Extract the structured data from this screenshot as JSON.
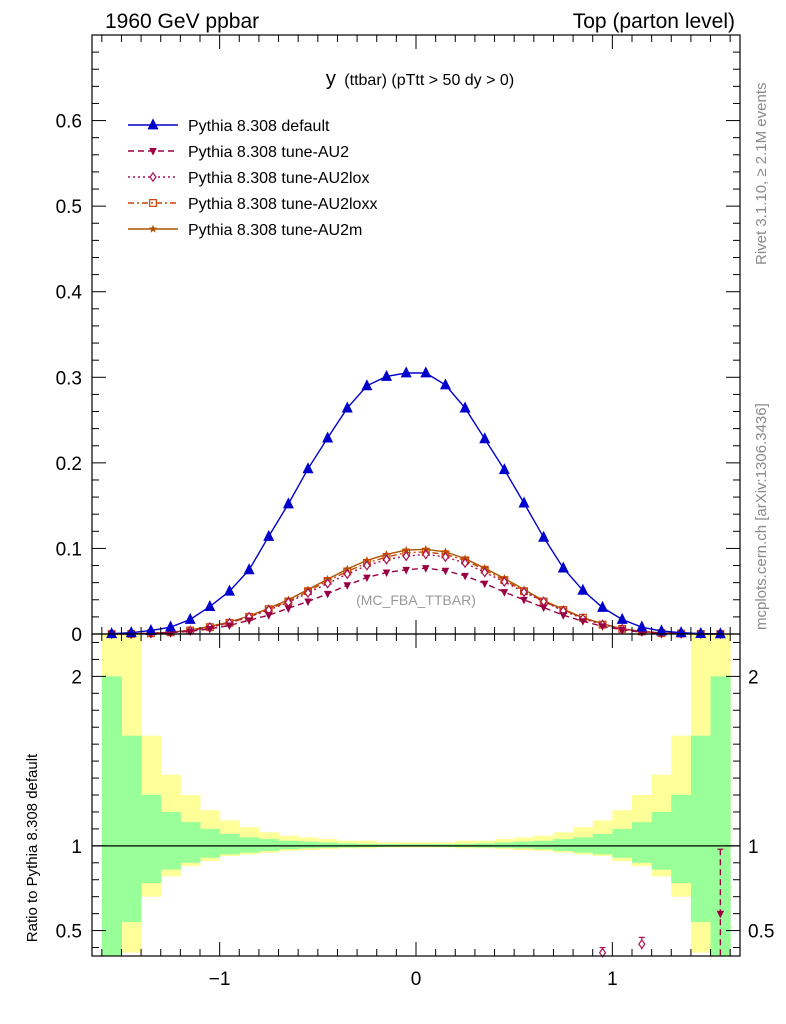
{
  "header": {
    "left": "1960 GeV ppbar",
    "right": "Top (parton level)"
  },
  "side": {
    "rivet": "Rivet 3.1.10, ≥ 2.1M events",
    "mcplots": "mcplots.cern.ch [arXiv:1306.3436]"
  },
  "chart_data": {
    "type": "line",
    "title_main": "y",
    "title_rest": "(ttbar) (pTtt > 50 dy > 0)",
    "analysis_label": "(MC_FBA_TTBAR)",
    "ratio_ylabel": "Ratio to Pythia 8.308 default",
    "xlim": [
      -1.65,
      1.65
    ],
    "ylim_main": [
      0,
      0.7
    ],
    "ylim_ratio": [
      0.35,
      2.25
    ],
    "x_ticks": [
      -1,
      0,
      1
    ],
    "x_tick_labels": [
      "−1",
      "0",
      "1"
    ],
    "y_ticks_main": [
      0,
      0.1,
      0.2,
      0.3,
      0.4,
      0.5,
      0.6
    ],
    "y_tick_labels_main": [
      "0",
      "0.1",
      "0.2",
      "0.3",
      "0.4",
      "0.5",
      "0.6"
    ],
    "y_ticks_ratio": [
      0.5,
      1,
      2
    ],
    "y_tick_labels_ratio": [
      "0.5",
      "1",
      "2"
    ],
    "legend_position": "top-left",
    "x": [
      -1.55,
      -1.45,
      -1.35,
      -1.25,
      -1.15,
      -1.05,
      -0.95,
      -0.85,
      -0.75,
      -0.65,
      -0.55,
      -0.45,
      -0.35,
      -0.25,
      -0.15,
      -0.05,
      0.05,
      0.15,
      0.25,
      0.35,
      0.45,
      0.55,
      0.65,
      0.75,
      0.85,
      0.95,
      1.05,
      1.15,
      1.25,
      1.35,
      1.45,
      1.55
    ],
    "series": [
      {
        "name": "Pythia 8.308 default",
        "color": "#0000cc",
        "marker": "triangle-up",
        "dash": "",
        "values": [
          0.0003,
          0.0015,
          0.004,
          0.008,
          0.017,
          0.032,
          0.05,
          0.075,
          0.114,
          0.152,
          0.193,
          0.229,
          0.264,
          0.29,
          0.301,
          0.305,
          0.305,
          0.291,
          0.264,
          0.228,
          0.192,
          0.153,
          0.113,
          0.077,
          0.051,
          0.031,
          0.017,
          0.008,
          0.0035,
          0.0015,
          0.0005,
          0.0002
        ]
      },
      {
        "name": "Pythia 8.308 tune-AU2",
        "color": "#990044",
        "marker": "triangle-down",
        "dash": "6,4",
        "values": [
          0,
          0.0001,
          0.0005,
          0.0015,
          0.003,
          0.006,
          0.01,
          0.016,
          0.022,
          0.03,
          0.038,
          0.047,
          0.057,
          0.066,
          0.072,
          0.075,
          0.077,
          0.074,
          0.068,
          0.059,
          0.049,
          0.04,
          0.031,
          0.022,
          0.015,
          0.009,
          0.005,
          0.002,
          0.001,
          0.0004,
          0.0001,
          0
        ]
      },
      {
        "name": "Pythia 8.308 tune-AU2lox",
        "color": "#aa1155",
        "marker": "diamond",
        "dash": "2,3",
        "values": [
          0,
          0.0001,
          0.0008,
          0.002,
          0.004,
          0.008,
          0.013,
          0.02,
          0.028,
          0.037,
          0.048,
          0.059,
          0.07,
          0.08,
          0.087,
          0.091,
          0.093,
          0.09,
          0.083,
          0.072,
          0.061,
          0.049,
          0.038,
          0.027,
          0.018,
          0.011,
          0.006,
          0.003,
          0.001,
          0.0005,
          0.0001,
          0
        ]
      },
      {
        "name": "Pythia 8.308 tune-AU2loxx",
        "color": "#cc4400",
        "marker": "square",
        "dash": "6,3,2,3",
        "values": [
          0,
          0.0001,
          0.0008,
          0.002,
          0.004,
          0.008,
          0.013,
          0.02,
          0.029,
          0.038,
          0.05,
          0.062,
          0.073,
          0.083,
          0.09,
          0.095,
          0.096,
          0.093,
          0.086,
          0.075,
          0.063,
          0.05,
          0.038,
          0.028,
          0.019,
          0.011,
          0.006,
          0.003,
          0.001,
          0.0005,
          0.0001,
          0
        ]
      },
      {
        "name": "Pythia 8.308 tune-AU2m",
        "color": "#aa5500",
        "marker": "star",
        "dash": "",
        "values": [
          0,
          0.0001,
          0.0009,
          0.002,
          0.0045,
          0.009,
          0.014,
          0.021,
          0.03,
          0.04,
          0.052,
          0.064,
          0.076,
          0.086,
          0.093,
          0.098,
          0.099,
          0.096,
          0.088,
          0.077,
          0.065,
          0.052,
          0.039,
          0.029,
          0.019,
          0.012,
          0.006,
          0.003,
          0.0012,
          0.0005,
          0.0001,
          0
        ]
      }
    ],
    "ratio_band_yellow": {
      "upper": [
        2.25,
        2.25,
        1.65,
        1.42,
        1.3,
        1.21,
        1.15,
        1.11,
        1.08,
        1.06,
        1.05,
        1.04,
        1.03,
        1.03,
        1.02,
        1.02,
        1.02,
        1.02,
        1.03,
        1.03,
        1.04,
        1.05,
        1.06,
        1.08,
        1.11,
        1.15,
        1.21,
        1.3,
        1.42,
        1.65,
        2.25,
        2.25
      ],
      "lower": [
        0.35,
        0.37,
        0.7,
        0.82,
        0.88,
        0.91,
        0.94,
        0.95,
        0.96,
        0.97,
        0.975,
        0.98,
        0.985,
        0.985,
        0.99,
        0.99,
        0.99,
        0.99,
        0.985,
        0.985,
        0.98,
        0.975,
        0.97,
        0.96,
        0.95,
        0.94,
        0.91,
        0.88,
        0.82,
        0.7,
        0.37,
        0.35
      ]
    },
    "ratio_band_green": {
      "upper": [
        2.0,
        1.65,
        1.3,
        1.2,
        1.14,
        1.1,
        1.07,
        1.05,
        1.04,
        1.03,
        1.025,
        1.02,
        1.015,
        1.012,
        1.01,
        1.01,
        1.01,
        1.01,
        1.012,
        1.015,
        1.02,
        1.025,
        1.03,
        1.04,
        1.05,
        1.07,
        1.1,
        1.14,
        1.2,
        1.3,
        1.65,
        2.0
      ],
      "lower": [
        0.35,
        0.55,
        0.78,
        0.86,
        0.9,
        0.93,
        0.95,
        0.96,
        0.97,
        0.98,
        0.985,
        0.988,
        0.99,
        0.992,
        0.994,
        0.995,
        0.995,
        0.994,
        0.992,
        0.99,
        0.988,
        0.985,
        0.98,
        0.97,
        0.96,
        0.95,
        0.93,
        0.9,
        0.86,
        0.78,
        0.55,
        0.35
      ]
    },
    "ratio_points": [
      {
        "series": 1,
        "x": 1.55,
        "y": 0.6,
        "err_low": 0.35,
        "err_high": 0.98
      },
      {
        "series": 2,
        "x": 0.95,
        "y": 0.37,
        "err_low": 0.35,
        "err_high": 0.4
      },
      {
        "series": 2,
        "x": 1.15,
        "y": 0.42,
        "err_low": 0.38,
        "err_high": 0.46
      }
    ]
  }
}
